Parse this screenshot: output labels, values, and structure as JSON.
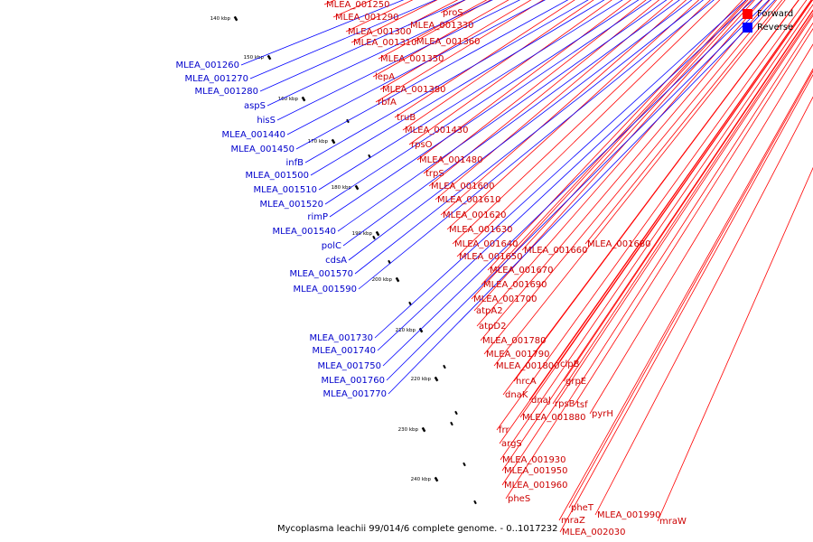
{
  "title": "Mycoplasma leachii 99/014/6 complete genome. - 0..1017232",
  "legend": {
    "forward_label": "Forward",
    "reverse_label": "Reverse",
    "forward_color": "#ff0000",
    "reverse_color": "#0000ff"
  },
  "ticks": [
    {
      "label": "140 kbp"
    },
    {
      "label": "150 kbp"
    },
    {
      "label": "160 kbp"
    },
    {
      "label": "170 kbp"
    },
    {
      "label": "180 kbp"
    },
    {
      "label": "190 kbp"
    },
    {
      "label": "200 kbp"
    },
    {
      "label": "210 kbp"
    },
    {
      "label": "220 kbp"
    },
    {
      "label": "230 kbp"
    },
    {
      "label": "240 kbp"
    }
  ],
  "forward_genes": [
    "MLEA_001250",
    "MLEA_001290",
    "proS",
    "MLEA_001300",
    "MLEA_001330",
    "MLEA_001310",
    "MLEA_001360",
    "MLEA_001350",
    "lepA",
    "MLEA_001380",
    "rbfA",
    "truB",
    "MLEA_001430",
    "rpsO",
    "MLEA_001480",
    "trpS",
    "MLEA_001600",
    "MLEA_001610",
    "MLEA_001620",
    "MLEA_001630",
    "MLEA_001640",
    "MLEA_001680",
    "MLEA_001660",
    "MLEA_001650",
    "MLEA_001670",
    "MLEA_001690",
    "MLEA_001700",
    "atpA2",
    "atpD2",
    "MLEA_001780",
    "MLEA_001790",
    "clpB",
    "MLEA_001800",
    "hrcA",
    "grpE",
    "dnaK",
    "dnaJ",
    "rpsB",
    "tsf",
    "pyrH",
    "MLEA_001880",
    "frr",
    "argS",
    "MLEA_001930",
    "MLEA_001950",
    "MLEA_001960",
    "pheS",
    "pheT",
    "MLEA_001990",
    "mraZ",
    "mraW",
    "MLEA_002030"
  ],
  "reverse_genes": [
    "MLEA_001260",
    "MLEA_001270",
    "MLEA_001280",
    "aspS",
    "hisS",
    "MLEA_001440",
    "MLEA_001450",
    "infB",
    "MLEA_001500",
    "MLEA_001510",
    "MLEA_001520",
    "rimP",
    "MLEA_001540",
    "polC",
    "cdsA",
    "MLEA_001570",
    "MLEA_001590",
    "MLEA_001730",
    "MLEA_001740",
    "MLEA_001750",
    "MLEA_001760",
    "MLEA_001770"
  ]
}
